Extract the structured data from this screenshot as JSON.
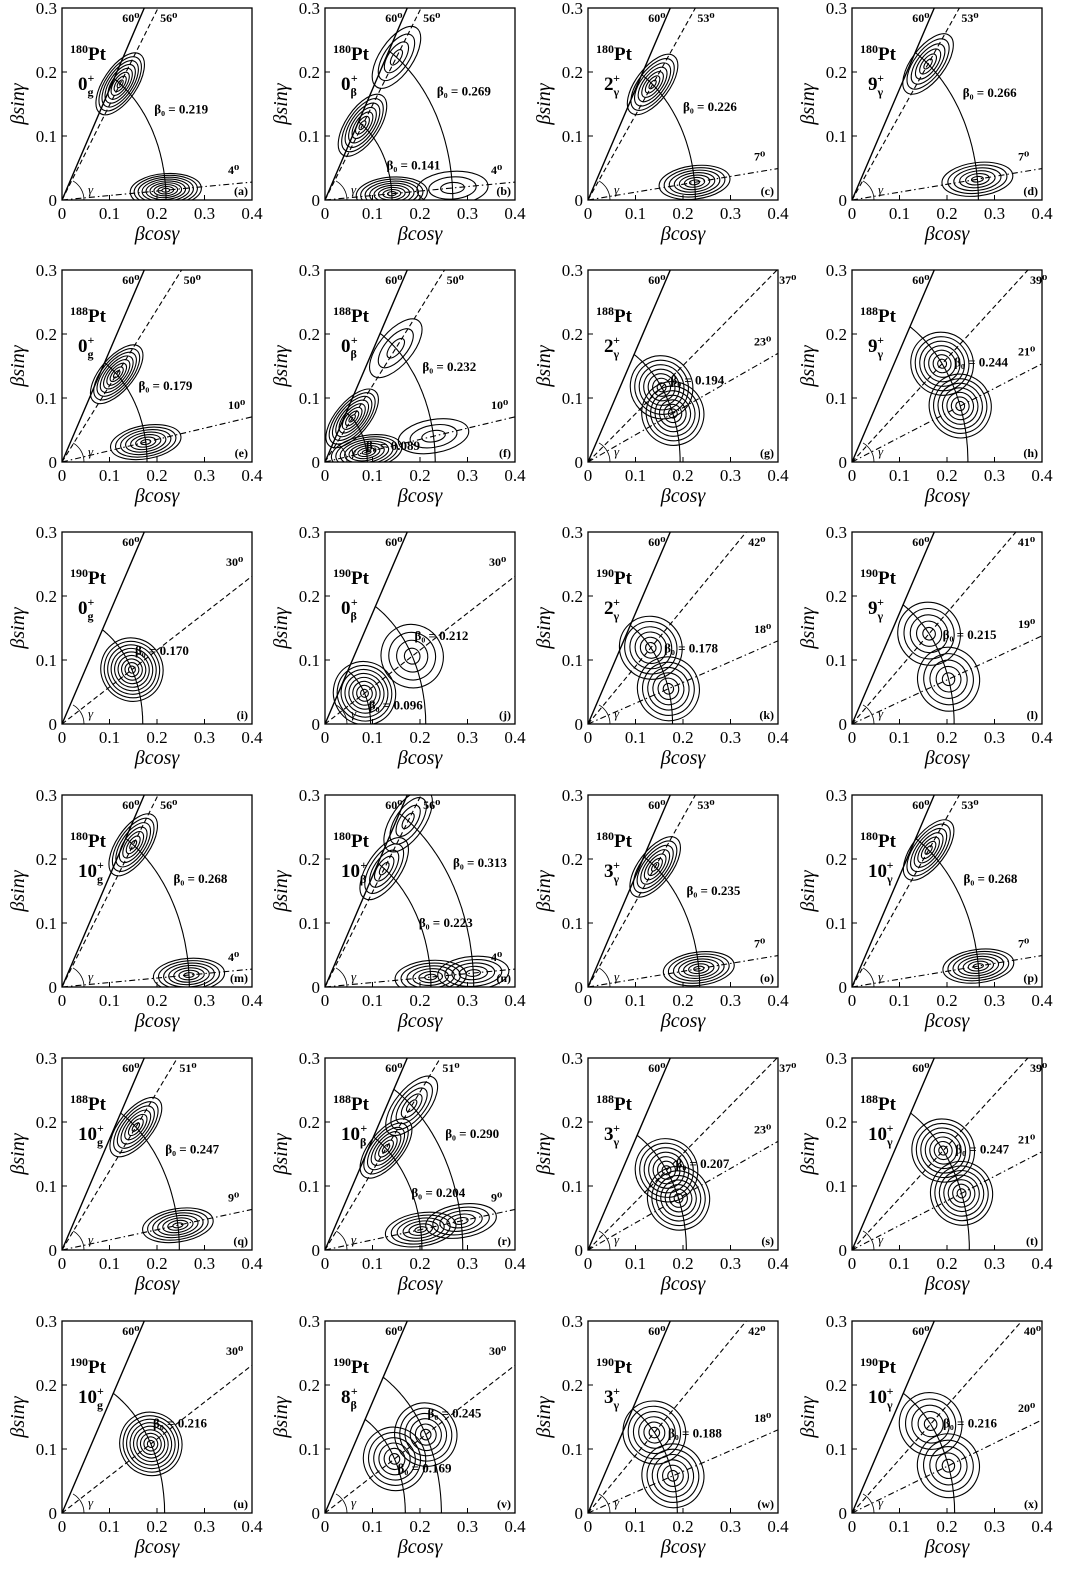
{
  "shared": {
    "xlabel": "βcosγ",
    "ylabel": "βsinγ",
    "gamma_symbol": "γ",
    "xlim": [
      0,
      0.4
    ],
    "ylim": [
      0,
      0.3
    ],
    "xticks": [
      "0",
      "0.1",
      "0.2",
      "0.3",
      "0.4"
    ],
    "yticks": [
      "0",
      "0.1",
      "0.2",
      "0.3"
    ],
    "limit_line_deg": 60
  },
  "chart_data": [
    {
      "type": "contour",
      "panel": "a",
      "nucleus_mass": "180",
      "nucleus": "Pt",
      "state": "0",
      "sub": "g",
      "sup": "+",
      "lines": [
        {
          "deg": 60,
          "style": "solid",
          "label": "60⁰"
        },
        {
          "deg": 56,
          "style": "dashed",
          "label": "56⁰"
        },
        {
          "deg": 4,
          "style": "dashdot",
          "label": "4⁰"
        }
      ],
      "arcs": [
        {
          "beta0": 0.219,
          "label": "β₀ = 0.219"
        }
      ],
      "minima": [
        {
          "beta": 0.219,
          "gamma": 56,
          "levels": 8
        },
        {
          "beta": 0.219,
          "gamma": 4,
          "levels": 9
        }
      ]
    },
    {
      "type": "contour",
      "panel": "b",
      "nucleus_mass": "180",
      "nucleus": "Pt",
      "state": "0",
      "sub": "β",
      "sup": "+",
      "lines": [
        {
          "deg": 60,
          "style": "solid",
          "label": "60⁰"
        },
        {
          "deg": 56,
          "style": "dashed",
          "label": "56⁰"
        },
        {
          "deg": 4,
          "style": "dashdot",
          "label": "4⁰"
        }
      ],
      "arcs": [
        {
          "beta0": 0.269,
          "label": "β₀ = 0.269"
        },
        {
          "beta0": 0.141,
          "label": "β₀ = 0.141"
        }
      ],
      "minima": [
        {
          "beta": 0.269,
          "gamma": 56,
          "levels": 4
        },
        {
          "beta": 0.141,
          "gamma": 56,
          "levels": 7
        },
        {
          "beta": 0.141,
          "gamma": 4,
          "levels": 8
        },
        {
          "beta": 0.269,
          "gamma": 4,
          "levels": 3
        }
      ]
    },
    {
      "type": "contour",
      "panel": "c",
      "nucleus_mass": "180",
      "nucleus": "Pt",
      "state": "2",
      "sub": "γ",
      "sup": "+",
      "lines": [
        {
          "deg": 60,
          "style": "solid",
          "label": "60⁰"
        },
        {
          "deg": 53,
          "style": "dashed",
          "label": "53⁰"
        },
        {
          "deg": 7,
          "style": "dashdot",
          "label": "7⁰"
        }
      ],
      "arcs": [
        {
          "beta0": 0.226,
          "label": "β₀ = 0.226"
        }
      ],
      "minima": [
        {
          "beta": 0.226,
          "gamma": 53,
          "levels": 7
        },
        {
          "beta": 0.226,
          "gamma": 7,
          "levels": 7
        }
      ]
    },
    {
      "type": "contour",
      "panel": "d",
      "nucleus_mass": "180",
      "nucleus": "Pt",
      "state": "9",
      "sub": "γ",
      "sup": "+",
      "lines": [
        {
          "deg": 60,
          "style": "solid",
          "label": "60⁰"
        },
        {
          "deg": 53,
          "style": "dashed",
          "label": "53⁰"
        },
        {
          "deg": 7,
          "style": "dashdot",
          "label": "7⁰"
        }
      ],
      "arcs": [
        {
          "beta0": 0.266,
          "label": "β₀ = 0.266"
        }
      ],
      "minima": [
        {
          "beta": 0.266,
          "gamma": 53,
          "levels": 6
        },
        {
          "beta": 0.266,
          "gamma": 7,
          "levels": 6
        }
      ]
    },
    {
      "type": "contour",
      "panel": "e",
      "nucleus_mass": "188",
      "nucleus": "Pt",
      "state": "0",
      "sub": "g",
      "sup": "+",
      "lines": [
        {
          "deg": 60,
          "style": "solid",
          "label": "60⁰"
        },
        {
          "deg": 50,
          "style": "dashed",
          "label": "50⁰"
        },
        {
          "deg": 10,
          "style": "dashdot",
          "label": "10⁰"
        }
      ],
      "arcs": [
        {
          "beta0": 0.179,
          "label": "β₀ = 0.179"
        }
      ],
      "minima": [
        {
          "beta": 0.179,
          "gamma": 50,
          "levels": 8
        },
        {
          "beta": 0.179,
          "gamma": 10,
          "levels": 7
        }
      ]
    },
    {
      "type": "contour",
      "panel": "f",
      "nucleus_mass": "188",
      "nucleus": "Pt",
      "state": "0",
      "sub": "β",
      "sup": "+",
      "lines": [
        {
          "deg": 60,
          "style": "solid",
          "label": "60⁰"
        },
        {
          "deg": 50,
          "style": "dashed",
          "label": "50⁰"
        },
        {
          "deg": 10,
          "style": "dashdot",
          "label": "10⁰"
        }
      ],
      "arcs": [
        {
          "beta0": 0.232,
          "label": "β₀ = 0.232"
        },
        {
          "beta0": 0.089,
          "label": "β₀ = 0.089"
        }
      ],
      "minima": [
        {
          "beta": 0.232,
          "gamma": 50,
          "levels": 3
        },
        {
          "beta": 0.089,
          "gamma": 50,
          "levels": 8
        },
        {
          "beta": 0.089,
          "gamma": 10,
          "levels": 8
        },
        {
          "beta": 0.232,
          "gamma": 10,
          "levels": 3
        }
      ]
    },
    {
      "type": "contour",
      "panel": "g",
      "nucleus_mass": "188",
      "nucleus": "Pt",
      "state": "2",
      "sub": "γ",
      "sup": "+",
      "lines": [
        {
          "deg": 60,
          "style": "solid",
          "label": "60⁰"
        },
        {
          "deg": 37,
          "style": "dashed",
          "label": "37⁰"
        },
        {
          "deg": 23,
          "style": "dashdot",
          "label": "23⁰"
        }
      ],
      "arcs": [
        {
          "beta0": 0.194,
          "label": "β₀ = 0.194"
        }
      ],
      "minima": [
        {
          "beta": 0.194,
          "gamma": 37,
          "levels": 7
        },
        {
          "beta": 0.194,
          "gamma": 23,
          "levels": 7
        }
      ]
    },
    {
      "type": "contour",
      "panel": "h",
      "nucleus_mass": "188",
      "nucleus": "Pt",
      "state": "9",
      "sub": "γ",
      "sup": "+",
      "lines": [
        {
          "deg": 60,
          "style": "solid",
          "label": "60⁰"
        },
        {
          "deg": 39,
          "style": "dashed",
          "label": "39⁰"
        },
        {
          "deg": 21,
          "style": "dashdot",
          "label": "21⁰"
        }
      ],
      "arcs": [
        {
          "beta0": 0.244,
          "label": "β₀ = 0.244"
        }
      ],
      "minima": [
        {
          "beta": 0.244,
          "gamma": 39,
          "levels": 7
        },
        {
          "beta": 0.244,
          "gamma": 21,
          "levels": 7
        }
      ]
    },
    {
      "type": "contour",
      "panel": "i",
      "nucleus_mass": "190",
      "nucleus": "Pt",
      "state": "0",
      "sub": "g",
      "sup": "+",
      "lines": [
        {
          "deg": 60,
          "style": "solid",
          "label": "60⁰"
        },
        {
          "deg": 30,
          "style": "dashed",
          "label": "30⁰"
        }
      ],
      "arcs": [
        {
          "beta0": 0.17,
          "label": "β₀ = 0.170"
        }
      ],
      "minima": [
        {
          "beta": 0.17,
          "gamma": 30,
          "levels": 9
        }
      ]
    },
    {
      "type": "contour",
      "panel": "j",
      "nucleus_mass": "190",
      "nucleus": "Pt",
      "state": "0",
      "sub": "β",
      "sup": "+",
      "lines": [
        {
          "deg": 60,
          "style": "solid",
          "label": "60⁰"
        },
        {
          "deg": 30,
          "style": "dashed",
          "label": "30⁰"
        }
      ],
      "arcs": [
        {
          "beta0": 0.212,
          "label": "β₀ = 0.212"
        },
        {
          "beta0": 0.096,
          "label": "β₀ = 0.096"
        }
      ],
      "minima": [
        {
          "beta": 0.212,
          "gamma": 30,
          "levels": 4
        },
        {
          "beta": 0.096,
          "gamma": 30,
          "levels": 8
        }
      ]
    },
    {
      "type": "contour",
      "panel": "k",
      "nucleus_mass": "190",
      "nucleus": "Pt",
      "state": "2",
      "sub": "γ",
      "sup": "+",
      "lines": [
        {
          "deg": 60,
          "style": "solid",
          "label": "60⁰"
        },
        {
          "deg": 42,
          "style": "dashed",
          "label": "42⁰"
        },
        {
          "deg": 18,
          "style": "dashdot",
          "label": "18⁰"
        }
      ],
      "arcs": [
        {
          "beta0": 0.178,
          "label": "β₀ = 0.178"
        }
      ],
      "minima": [
        {
          "beta": 0.178,
          "gamma": 42,
          "levels": 6
        },
        {
          "beta": 0.178,
          "gamma": 18,
          "levels": 6
        }
      ]
    },
    {
      "type": "contour",
      "panel": "l",
      "nucleus_mass": "190",
      "nucleus": "Pt",
      "state": "9",
      "sub": "γ",
      "sup": "+",
      "lines": [
        {
          "deg": 60,
          "style": "solid",
          "label": "60⁰"
        },
        {
          "deg": 41,
          "style": "dashed",
          "label": "41⁰"
        },
        {
          "deg": 19,
          "style": "dashdot",
          "label": "19⁰"
        }
      ],
      "arcs": [
        {
          "beta0": 0.215,
          "label": "β₀ = 0.215"
        }
      ],
      "minima": [
        {
          "beta": 0.215,
          "gamma": 41,
          "levels": 5
        },
        {
          "beta": 0.215,
          "gamma": 19,
          "levels": 5
        }
      ]
    },
    {
      "type": "contour",
      "panel": "m",
      "nucleus_mass": "180",
      "nucleus": "Pt",
      "state": "10",
      "sub": "g",
      "sup": "+",
      "lines": [
        {
          "deg": 60,
          "style": "solid",
          "label": "60⁰"
        },
        {
          "deg": 56,
          "style": "dashed",
          "label": "56⁰"
        },
        {
          "deg": 4,
          "style": "dashdot",
          "label": "4⁰"
        }
      ],
      "arcs": [
        {
          "beta0": 0.268,
          "label": "β₀ = 0.268"
        }
      ],
      "minima": [
        {
          "beta": 0.268,
          "gamma": 56,
          "levels": 7
        },
        {
          "beta": 0.268,
          "gamma": 4,
          "levels": 7
        }
      ]
    },
    {
      "type": "contour",
      "panel": "n",
      "nucleus_mass": "180",
      "nucleus": "Pt",
      "state": "10",
      "sub": "β",
      "sup": "+",
      "lines": [
        {
          "deg": 60,
          "style": "solid",
          "label": "60⁰"
        },
        {
          "deg": 56,
          "style": "dashed",
          "label": "56⁰"
        },
        {
          "deg": 4,
          "style": "dashdot",
          "label": "4⁰"
        }
      ],
      "arcs": [
        {
          "beta0": 0.313,
          "label": "β₀ = 0.313"
        },
        {
          "beta0": 0.223,
          "label": "β₀ = 0.223"
        }
      ],
      "minima": [
        {
          "beta": 0.313,
          "gamma": 56,
          "levels": 4
        },
        {
          "beta": 0.223,
          "gamma": 56,
          "levels": 5
        },
        {
          "beta": 0.223,
          "gamma": 4,
          "levels": 6
        },
        {
          "beta": 0.313,
          "gamma": 4,
          "levels": 5
        }
      ]
    },
    {
      "type": "contour",
      "panel": "o",
      "nucleus_mass": "180",
      "nucleus": "Pt",
      "state": "3",
      "sub": "γ",
      "sup": "+",
      "lines": [
        {
          "deg": 60,
          "style": "solid",
          "label": "60⁰"
        },
        {
          "deg": 53,
          "style": "dashed",
          "label": "53⁰"
        },
        {
          "deg": 7,
          "style": "dashdot",
          "label": "7⁰"
        }
      ],
      "arcs": [
        {
          "beta0": 0.235,
          "label": "β₀ = 0.235"
        }
      ],
      "minima": [
        {
          "beta": 0.235,
          "gamma": 53,
          "levels": 7
        },
        {
          "beta": 0.235,
          "gamma": 7,
          "levels": 7
        }
      ]
    },
    {
      "type": "contour",
      "panel": "p",
      "nucleus_mass": "180",
      "nucleus": "Pt",
      "state": "10",
      "sub": "γ",
      "sup": "+",
      "lines": [
        {
          "deg": 60,
          "style": "solid",
          "label": "60⁰"
        },
        {
          "deg": 53,
          "style": "dashed",
          "label": "53⁰"
        },
        {
          "deg": 7,
          "style": "dashdot",
          "label": "7⁰"
        }
      ],
      "arcs": [
        {
          "beta0": 0.268,
          "label": "β₀ = 0.268"
        }
      ],
      "minima": [
        {
          "beta": 0.268,
          "gamma": 53,
          "levels": 7
        },
        {
          "beta": 0.268,
          "gamma": 7,
          "levels": 7
        }
      ]
    },
    {
      "type": "contour",
      "panel": "q",
      "nucleus_mass": "188",
      "nucleus": "Pt",
      "state": "10",
      "sub": "g",
      "sup": "+",
      "lines": [
        {
          "deg": 60,
          "style": "solid",
          "label": "60⁰"
        },
        {
          "deg": 51,
          "style": "dashed",
          "label": "51⁰"
        },
        {
          "deg": 9,
          "style": "dashdot",
          "label": "9⁰"
        }
      ],
      "arcs": [
        {
          "beta0": 0.247,
          "label": "β₀ = 0.247"
        }
      ],
      "minima": [
        {
          "beta": 0.247,
          "gamma": 51,
          "levels": 7
        },
        {
          "beta": 0.247,
          "gamma": 9,
          "levels": 7
        }
      ]
    },
    {
      "type": "contour",
      "panel": "r",
      "nucleus_mass": "188",
      "nucleus": "Pt",
      "state": "10",
      "sub": "β",
      "sup": "+",
      "lines": [
        {
          "deg": 60,
          "style": "solid",
          "label": "60⁰"
        },
        {
          "deg": 51,
          "style": "dashed",
          "label": "51⁰"
        },
        {
          "deg": 9,
          "style": "dashdot",
          "label": "9⁰"
        }
      ],
      "arcs": [
        {
          "beta0": 0.29,
          "label": "β₀ = 0.290"
        },
        {
          "beta0": 0.204,
          "label": "β₀ = 0.204"
        }
      ],
      "minima": [
        {
          "beta": 0.29,
          "gamma": 51,
          "levels": 5
        },
        {
          "beta": 0.204,
          "gamma": 51,
          "levels": 7
        },
        {
          "beta": 0.204,
          "gamma": 9,
          "levels": 6
        },
        {
          "beta": 0.29,
          "gamma": 9,
          "levels": 5
        }
      ]
    },
    {
      "type": "contour",
      "panel": "s",
      "nucleus_mass": "188",
      "nucleus": "Pt",
      "state": "3",
      "sub": "γ",
      "sup": "+",
      "lines": [
        {
          "deg": 60,
          "style": "solid",
          "label": "60⁰"
        },
        {
          "deg": 37,
          "style": "dashed",
          "label": "37⁰"
        },
        {
          "deg": 23,
          "style": "dashdot",
          "label": "23⁰"
        }
      ],
      "arcs": [
        {
          "beta0": 0.207,
          "label": "β₀ = 0.207"
        }
      ],
      "minima": [
        {
          "beta": 0.207,
          "gamma": 37,
          "levels": 7
        },
        {
          "beta": 0.207,
          "gamma": 23,
          "levels": 7
        }
      ]
    },
    {
      "type": "contour",
      "panel": "t",
      "nucleus_mass": "188",
      "nucleus": "Pt",
      "state": "10",
      "sub": "γ",
      "sup": "+",
      "lines": [
        {
          "deg": 60,
          "style": "solid",
          "label": "60⁰"
        },
        {
          "deg": 39,
          "style": "dashed",
          "label": "39⁰"
        },
        {
          "deg": 21,
          "style": "dashdot",
          "label": "21⁰"
        }
      ],
      "arcs": [
        {
          "beta0": 0.247,
          "label": "β₀ = 0.247"
        }
      ],
      "minima": [
        {
          "beta": 0.247,
          "gamma": 39,
          "levels": 7
        },
        {
          "beta": 0.247,
          "gamma": 21,
          "levels": 7
        }
      ]
    },
    {
      "type": "contour",
      "panel": "u",
      "nucleus_mass": "190",
      "nucleus": "Pt",
      "state": "10",
      "sub": "g",
      "sup": "+",
      "lines": [
        {
          "deg": 60,
          "style": "solid",
          "label": "60⁰"
        },
        {
          "deg": 30,
          "style": "dashed",
          "label": "30⁰"
        }
      ],
      "arcs": [
        {
          "beta0": 0.216,
          "label": "β₀ = 0.216"
        }
      ],
      "minima": [
        {
          "beta": 0.216,
          "gamma": 30,
          "levels": 9
        }
      ]
    },
    {
      "type": "contour",
      "panel": "v",
      "nucleus_mass": "190",
      "nucleus": "Pt",
      "state": "8",
      "sub": "β",
      "sup": "+",
      "lines": [
        {
          "deg": 60,
          "style": "solid",
          "label": "60⁰"
        },
        {
          "deg": 30,
          "style": "dashed",
          "label": "30⁰"
        }
      ],
      "arcs": [
        {
          "beta0": 0.245,
          "label": "β₀ = 0.245"
        },
        {
          "beta0": 0.169,
          "label": "β₀ = 0.169"
        }
      ],
      "minima": [
        {
          "beta": 0.245,
          "gamma": 30,
          "levels": 6
        },
        {
          "beta": 0.169,
          "gamma": 30,
          "levels": 6
        }
      ]
    },
    {
      "type": "contour",
      "panel": "w",
      "nucleus_mass": "190",
      "nucleus": "Pt",
      "state": "3",
      "sub": "γ",
      "sup": "+",
      "lines": [
        {
          "deg": 60,
          "style": "solid",
          "label": "60⁰"
        },
        {
          "deg": 42,
          "style": "dashed",
          "label": "42⁰"
        },
        {
          "deg": 18,
          "style": "dashdot",
          "label": "18⁰"
        }
      ],
      "arcs": [
        {
          "beta0": 0.188,
          "label": "β₀ = 0.188"
        }
      ],
      "minima": [
        {
          "beta": 0.188,
          "gamma": 42,
          "levels": 6
        },
        {
          "beta": 0.188,
          "gamma": 18,
          "levels": 6
        }
      ]
    },
    {
      "type": "contour",
      "panel": "x",
      "nucleus_mass": "190",
      "nucleus": "Pt",
      "state": "10",
      "sub": "γ",
      "sup": "+",
      "lines": [
        {
          "deg": 60,
          "style": "solid",
          "label": "60⁰"
        },
        {
          "deg": 40,
          "style": "dashed",
          "label": "40⁰"
        },
        {
          "deg": 20,
          "style": "dashdot",
          "label": "20⁰"
        }
      ],
      "arcs": [
        {
          "beta0": 0.216,
          "label": "β₀ = 0.216"
        }
      ],
      "minima": [
        {
          "beta": 0.216,
          "gamma": 40,
          "levels": 5
        },
        {
          "beta": 0.216,
          "gamma": 20,
          "levels": 5
        }
      ]
    }
  ]
}
